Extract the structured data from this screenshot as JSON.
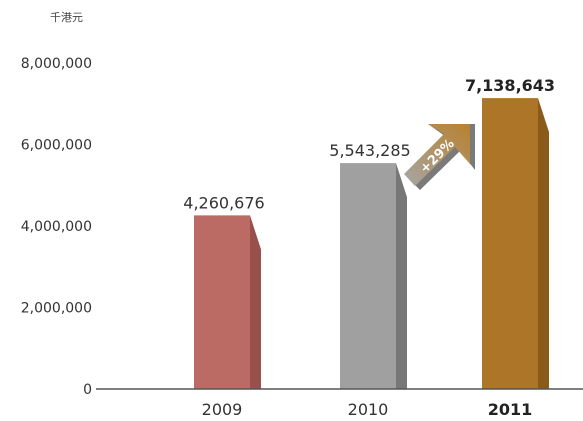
{
  "chart_data": {
    "type": "bar",
    "unit_label": "千港元",
    "categories": [
      "2009",
      "2010",
      "2011"
    ],
    "values": [
      4260676,
      5543285,
      7138643
    ],
    "value_labels": [
      "4,260,676",
      "5,543,285",
      "7,138,643"
    ],
    "yticks": [
      "0",
      "2,000,000",
      "4,000,000",
      "6,000,000",
      "8,000,000"
    ],
    "ylim": [
      0,
      8000000
    ],
    "highlight_index": 2,
    "growth_label": "+29%",
    "colors": {
      "bars": [
        "#bb6a64",
        "#a0a0a0",
        "#ad7527"
      ],
      "bar_sides": [
        "#97504b",
        "#777777",
        "#8a5a18"
      ],
      "arrow": "#b88a40",
      "axis": "#555555"
    }
  }
}
